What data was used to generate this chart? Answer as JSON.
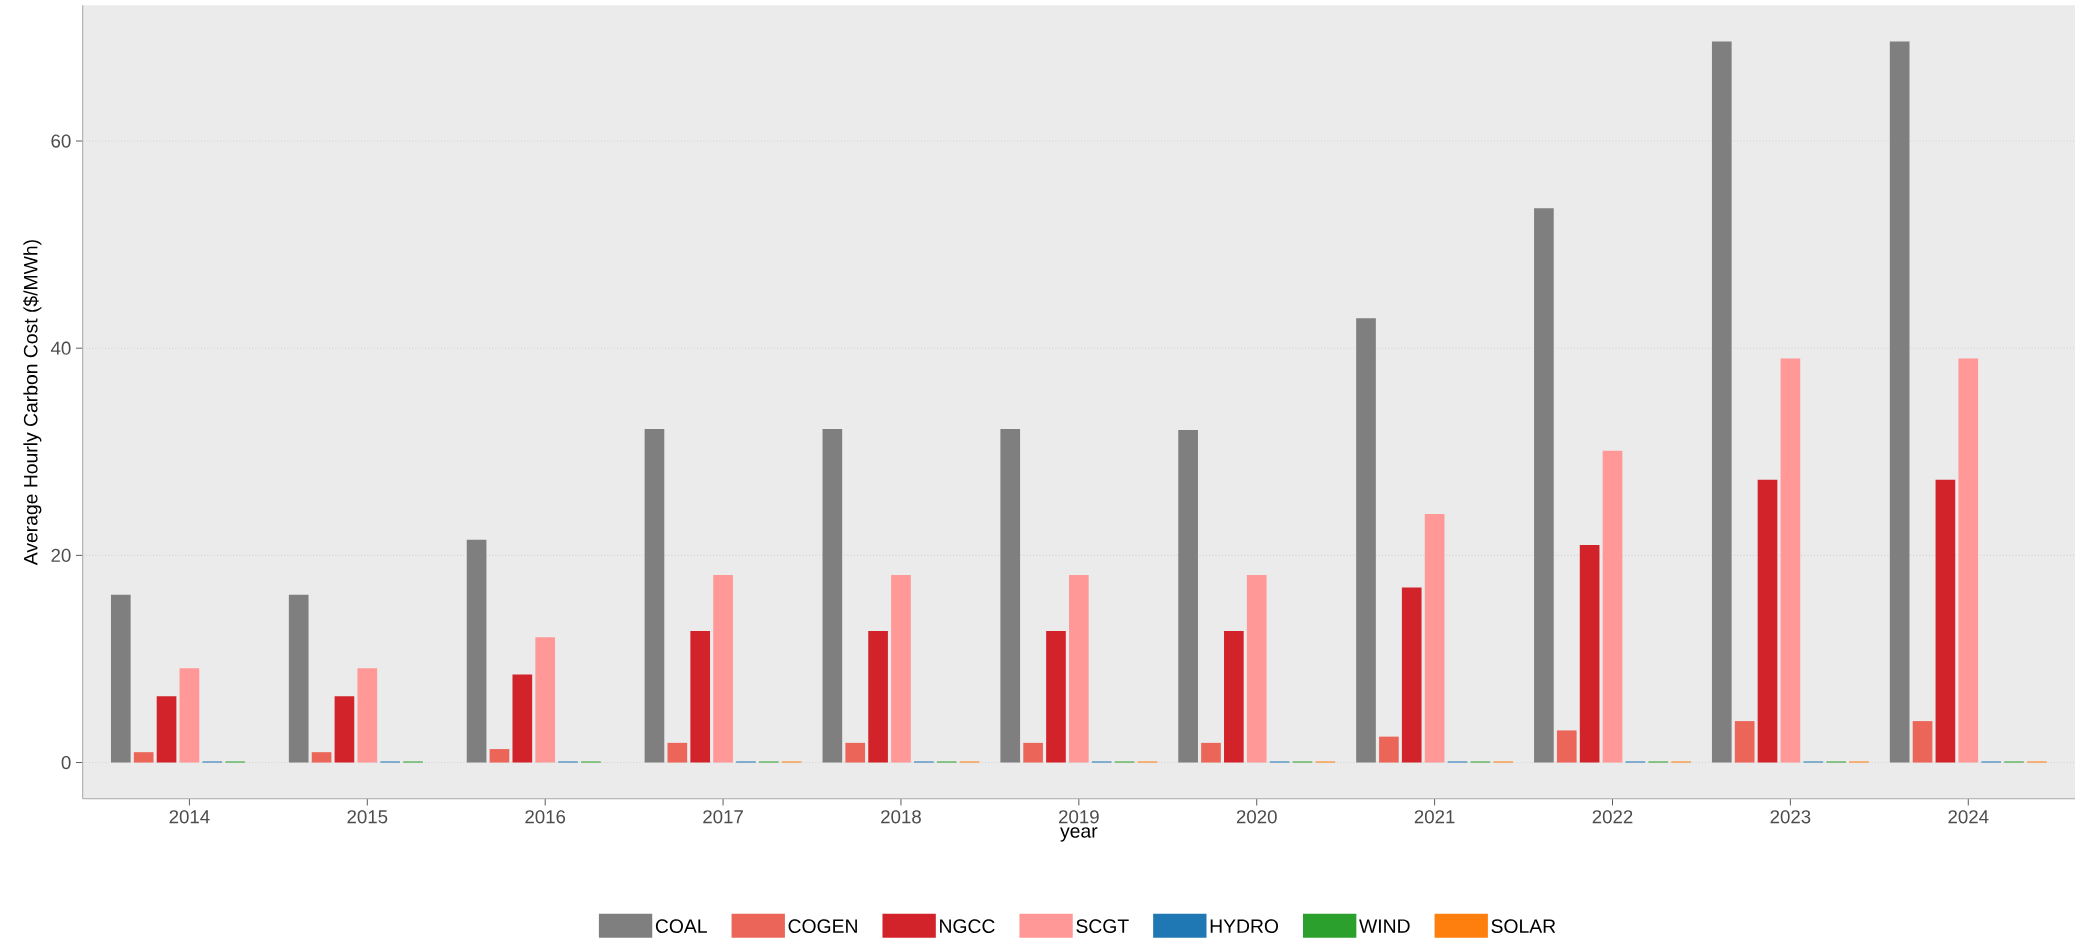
{
  "chart_data": {
    "type": "bar",
    "xlabel": "year",
    "ylabel": "Average Hourly Carbon Cost ($/MWh)",
    "categories": [
      "2014",
      "2015",
      "2016",
      "2017",
      "2018",
      "2019",
      "2020",
      "2021",
      "2022",
      "2023",
      "2024"
    ],
    "series": [
      {
        "name": "COAL",
        "color": "#7f7f7f",
        "values": [
          16.2,
          16.2,
          21.5,
          32.2,
          32.2,
          32.2,
          32.1,
          42.9,
          53.5,
          69.6,
          69.6
        ]
      },
      {
        "name": "COGEN",
        "color": "#eb6558",
        "values": [
          1.0,
          1.0,
          1.3,
          1.9,
          1.9,
          1.9,
          1.9,
          2.5,
          3.1,
          4.0,
          4.0
        ]
      },
      {
        "name": "NGCC",
        "color": "#d3232a",
        "values": [
          6.4,
          6.4,
          8.5,
          12.7,
          12.7,
          12.7,
          12.7,
          16.9,
          21.0,
          27.3,
          27.3
        ]
      },
      {
        "name": "SCGT",
        "color": "#ff9896",
        "values": [
          9.1,
          9.1,
          12.1,
          18.1,
          18.1,
          18.1,
          18.1,
          24.0,
          30.1,
          39.0,
          39.0
        ]
      },
      {
        "name": "HYDRO",
        "color": "#1f77b4",
        "values": [
          0.1,
          0.1,
          0.1,
          0.1,
          0.1,
          0.1,
          0.1,
          0.1,
          0.1,
          0.1,
          0.1
        ]
      },
      {
        "name": "WIND",
        "color": "#2ca02c",
        "values": [
          0.1,
          0.1,
          0.1,
          0.1,
          0.1,
          0.1,
          0.1,
          0.1,
          0.1,
          0.1,
          0.1
        ]
      },
      {
        "name": "SOLAR",
        "color": "#ff7f0e",
        "values": [
          null,
          null,
          null,
          0.1,
          0.1,
          0.1,
          0.1,
          0.1,
          0.1,
          0.1,
          0.1
        ]
      }
    ],
    "ylim": [
      -3.5,
      73.1
    ],
    "yticks": [
      0,
      20,
      40,
      60
    ],
    "grid": "y",
    "legend": "bottom"
  }
}
